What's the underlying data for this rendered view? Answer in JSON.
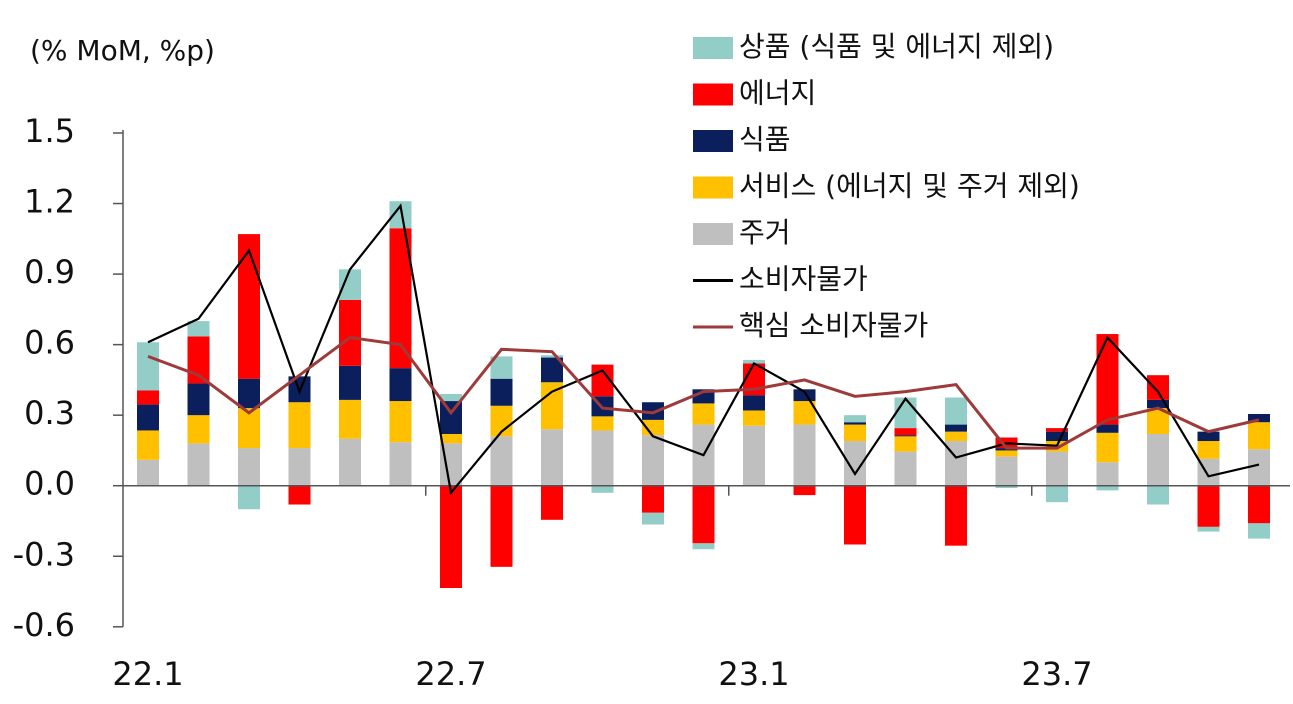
{
  "chart_data": {
    "type": "bar",
    "y_label": "(% MoM, %p)",
    "categories": [
      "22.1",
      null,
      null,
      null,
      null,
      null,
      "22.7",
      null,
      null,
      null,
      null,
      null,
      "23.1",
      null,
      null,
      null,
      null,
      null,
      "23.7",
      null,
      null,
      null,
      null
    ],
    "ylim": [
      -0.6,
      1.5
    ],
    "yticks": [
      1.5,
      1.2,
      0.9,
      0.6,
      0.3,
      {
        "value": 0,
        "label": "0.0"
      },
      -0.3,
      -0.6
    ],
    "legend": "top-right",
    "series": [
      {
        "name": "상품 (식품 및 에너지 제외)",
        "type": "bar",
        "color": "#93cdc8",
        "values": [
          0.205,
          0.065,
          -0.1,
          0,
          0.13,
          0.115,
          0.03,
          0.095,
          0.01,
          -0.03,
          -0.05,
          -0.025,
          0.015,
          0,
          0.03,
          0.13,
          0.115,
          -0.01,
          -0.07,
          -0.02,
          -0.08,
          -0.02,
          -0.065
        ]
      },
      {
        "name": "에너지",
        "type": "bar",
        "color": "#ff0000",
        "values": [
          0.06,
          0.2,
          0.615,
          -0.08,
          0.28,
          0.595,
          -0.435,
          -0.345,
          -0.145,
          0.135,
          -0.115,
          -0.245,
          0.135,
          -0.04,
          -0.25,
          0.03,
          -0.255,
          0.045,
          0.015,
          0.385,
          0.105,
          -0.175,
          -0.16
        ]
      },
      {
        "name": "식품",
        "type": "bar",
        "color": "#0a1f5c",
        "values": [
          0.11,
          0.135,
          0.125,
          0.11,
          0.145,
          0.14,
          0.14,
          0.115,
          0.105,
          0.085,
          0.075,
          0.06,
          0.065,
          0.05,
          0.01,
          0.005,
          0.03,
          0.01,
          0.04,
          0.035,
          0.035,
          0.04,
          0.035
        ]
      },
      {
        "name": "서비스 (에너지 및 주거 제외)",
        "type": "bar",
        "color": "#ffc000",
        "values": [
          0.125,
          0.12,
          0.17,
          0.195,
          0.165,
          0.175,
          0.04,
          0.13,
          0.2,
          0.06,
          0.065,
          0.09,
          0.065,
          0.1,
          0.07,
          0.065,
          0.04,
          0.025,
          0.045,
          0.125,
          0.11,
          0.075,
          0.115
        ]
      },
      {
        "name": "주거",
        "type": "bar",
        "color": "#bfbfbf",
        "values": [
          0.11,
          0.18,
          0.16,
          0.16,
          0.2,
          0.185,
          0.18,
          0.21,
          0.24,
          0.235,
          0.215,
          0.26,
          0.255,
          0.26,
          0.19,
          0.145,
          0.19,
          0.125,
          0.145,
          0.1,
          0.22,
          0.115,
          0.155
        ]
      },
      {
        "name": "소비자물가",
        "type": "line",
        "color": "#000000",
        "values": [
          0.61,
          0.71,
          1.0,
          0.4,
          0.92,
          1.19,
          -0.03,
          0.23,
          0.4,
          0.49,
          0.21,
          0.13,
          0.52,
          0.4,
          0.05,
          0.37,
          0.12,
          0.18,
          0.17,
          0.63,
          0.4,
          0.04,
          0.09
        ]
      },
      {
        "name": "핵심 소비자물가",
        "type": "line",
        "color": "#9e3a3a",
        "values": [
          0.55,
          0.47,
          0.31,
          0.47,
          0.63,
          0.6,
          0.31,
          0.58,
          0.57,
          0.33,
          0.31,
          0.4,
          0.41,
          0.45,
          0.38,
          0.4,
          0.43,
          0.16,
          0.16,
          0.28,
          0.33,
          0.23,
          0.28
        ]
      }
    ]
  }
}
